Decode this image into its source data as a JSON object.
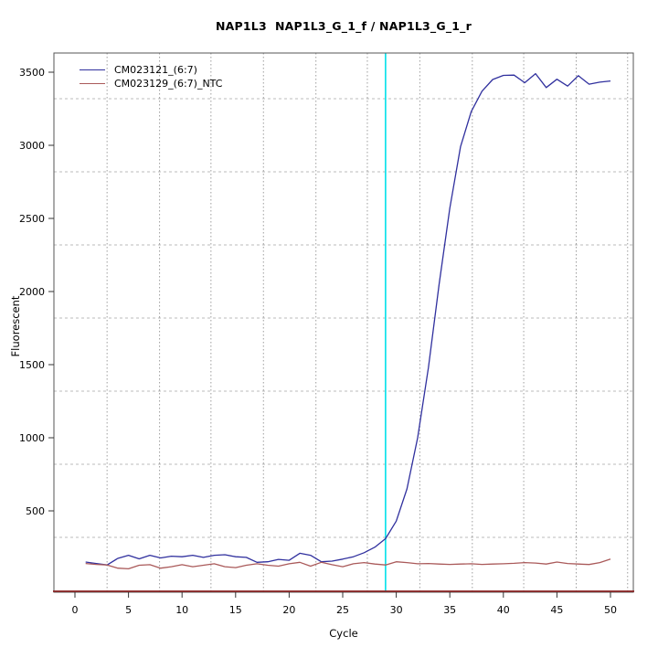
{
  "chart_data": {
    "type": "line",
    "title": "NAP1L3  NAP1L3_G_1_f / NAP1L3_G_1_r",
    "xlabel": "Cycle",
    "ylabel": "Fluorescent",
    "x": [
      1,
      2,
      3,
      4,
      5,
      6,
      7,
      8,
      9,
      10,
      11,
      12,
      13,
      14,
      15,
      16,
      17,
      18,
      19,
      20,
      21,
      22,
      23,
      24,
      25,
      26,
      27,
      28,
      29,
      30,
      31,
      32,
      33,
      34,
      35,
      36,
      37,
      38,
      39,
      40,
      41,
      42,
      43,
      44,
      45,
      46,
      47,
      48,
      49,
      50
    ],
    "series": [
      {
        "name": "CM023121_(6:7)",
        "color": "#30309E",
        "values": [
          150,
          140,
          130,
          175,
          196,
          172,
          196,
          178,
          190,
          186,
          196,
          182,
          196,
          200,
          186,
          182,
          148,
          152,
          168,
          162,
          210,
          196,
          152,
          156,
          170,
          186,
          214,
          252,
          310,
          430,
          650,
          1000,
          1480,
          2050,
          2570,
          2990,
          3230,
          3370,
          3450,
          3478,
          3480,
          3428,
          3490,
          3395,
          3452,
          3405,
          3476,
          3418,
          3432,
          3440
        ]
      },
      {
        "name": "CM023129_(6:7)_NTC",
        "color": "#AA5A5A",
        "values": [
          140,
          134,
          130,
          108,
          104,
          128,
          132,
          108,
          118,
          132,
          118,
          128,
          138,
          118,
          112,
          128,
          138,
          128,
          122,
          138,
          148,
          122,
          148,
          132,
          118,
          138,
          146,
          136,
          130,
          152,
          146,
          138,
          140,
          136,
          134,
          136,
          138,
          134,
          136,
          138,
          141,
          146,
          143,
          136,
          150,
          140,
          136,
          133,
          146,
          170
        ]
      }
    ],
    "xticks": [
      0,
      5,
      10,
      15,
      20,
      25,
      30,
      35,
      40,
      45,
      50
    ],
    "yticks": [
      500,
      1000,
      1500,
      2000,
      2500,
      3000,
      3500
    ],
    "xlim": [
      -2,
      52.1
    ],
    "ylim": [
      -56,
      3630
    ],
    "grid": {
      "horizontal_dashed_at": [
        319,
        819,
        1319,
        1819,
        2319,
        2819,
        3319
      ],
      "vertical_dotted_at_cycles": [
        3.0,
        7.9,
        12.7,
        17.6,
        22.5,
        27.3,
        32.2,
        37.1,
        41.9,
        46.8,
        51.6
      ]
    },
    "annotations": {
      "threshold_cycle_vline": {
        "cycle": 29,
        "color": "#00E0E8"
      },
      "bottom_baseline_hline": {
        "color": "#8B2424"
      }
    },
    "legend": {
      "position": "top-left",
      "entries": [
        "CM023121_(6:7)",
        "CM023129_(6:7)_NTC"
      ]
    },
    "axis_color": "#555555",
    "tick_color": "#333333",
    "h_grid_color": "#bbbbbb",
    "v_grid_color": "#9e9e9e"
  }
}
